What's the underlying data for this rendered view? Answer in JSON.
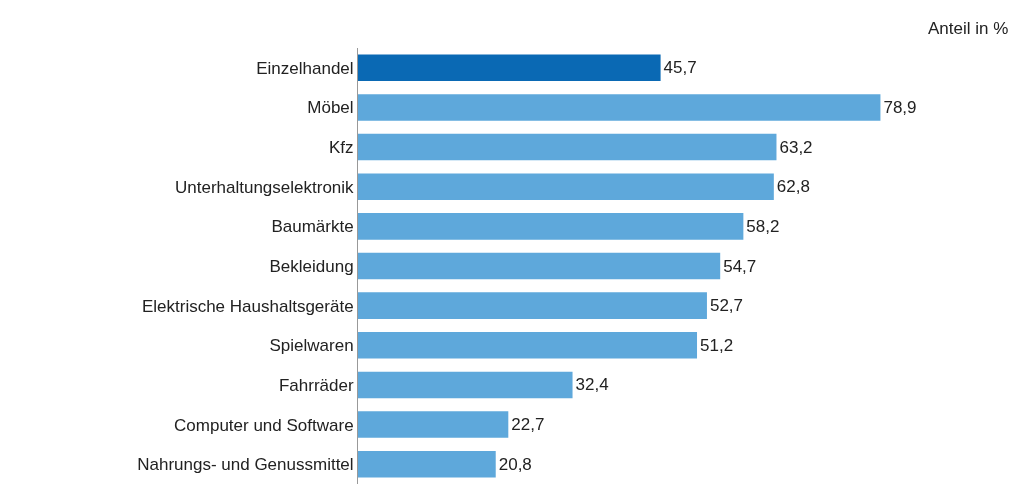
{
  "chart_data": {
    "type": "bar",
    "orientation": "horizontal",
    "categories": [
      "Einzelhandel",
      "Möbel",
      "Kfz",
      "Unterhaltungselektronik",
      "Baumärkte",
      "Bekleidung",
      "Elektrische Haushaltsgeräte",
      "Spielwaren",
      "Fahrräder",
      "Computer und Software",
      "Nahrungs- und Genussmittel"
    ],
    "values": [
      45.7,
      78.9,
      63.2,
      62.8,
      58.2,
      54.7,
      52.7,
      51.2,
      32.4,
      22.7,
      20.8
    ],
    "value_labels": [
      "45,7",
      "78,9",
      "63,2",
      "62,8",
      "58,2",
      "54,7",
      "52,7",
      "51,2",
      "32,4",
      "22,7",
      "20,8"
    ],
    "colors": [
      "#0a69b4",
      "#5ea8db",
      "#5ea8db",
      "#5ea8db",
      "#5ea8db",
      "#5ea8db",
      "#5ea8db",
      "#5ea8db",
      "#5ea8db",
      "#5ea8db",
      "#5ea8db"
    ],
    "annotations": [
      "Anteil in %"
    ]
  }
}
